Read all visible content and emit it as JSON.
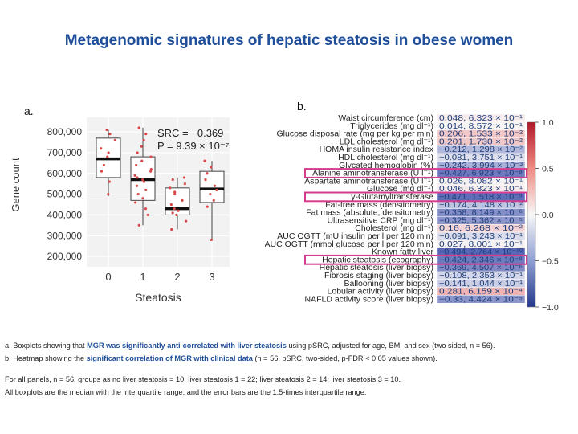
{
  "title": "Metagenomic signatures of hepatic steatosis in obese women",
  "panel_a_label": "a.",
  "panel_b_label": "b.",
  "chart_data": [
    {
      "type": "box",
      "xlabel": "Steatosis",
      "ylabel": "Gene count",
      "categories": [
        "0",
        "1",
        "2",
        "3"
      ],
      "ylim": [
        150000,
        870000
      ],
      "yticks": [
        200000,
        300000,
        400000,
        500000,
        600000,
        700000,
        800000
      ],
      "ytick_labels": [
        "200,000",
        "300,000",
        "400,000",
        "500,000",
        "600,000",
        "700,000",
        "800,000"
      ],
      "annotation_line1": "SRC = −0.369",
      "annotation_line2": "P = 9.39 × 10⁻⁷",
      "boxes": [
        {
          "category": "0",
          "q1": 580000,
          "median": 670000,
          "q3": 770000,
          "whisker_low": 490000,
          "whisker_high": 810000,
          "points": [
            500000,
            560000,
            610000,
            640000,
            680000,
            700000,
            720000,
            760000,
            790000,
            810000
          ]
        },
        {
          "category": "1",
          "q1": 470000,
          "median": 570000,
          "q3": 680000,
          "whisker_low": 350000,
          "whisker_high": 820000,
          "points": [
            350000,
            400000,
            430000,
            460000,
            480000,
            500000,
            520000,
            540000,
            560000,
            570000,
            580000,
            590000,
            610000,
            620000,
            640000,
            660000,
            680000,
            700000,
            730000,
            760000,
            790000,
            820000
          ]
        },
        {
          "category": "2",
          "q1": 400000,
          "median": 430000,
          "q3": 530000,
          "whisker_low": 330000,
          "whisker_high": 580000,
          "points": [
            330000,
            370000,
            400000,
            410000,
            420000,
            430000,
            450000,
            470000,
            500000,
            510000,
            530000,
            550000,
            570000,
            580000
          ]
        },
        {
          "category": "3",
          "q1": 460000,
          "median": 525000,
          "q3": 610000,
          "whisker_low": 280000,
          "whisker_high": 660000,
          "points": [
            280000,
            440000,
            470000,
            500000,
            520000,
            540000,
            570000,
            600000,
            630000,
            660000
          ]
        }
      ]
    },
    {
      "type": "heatmap",
      "colorbar_ticks": [
        "1.0",
        "0.5",
        "0.0",
        "−0.5",
        "−1.0"
      ],
      "colorbar_values": [
        1.0,
        0.5,
        0.0,
        -0.5,
        -1.0
      ],
      "rows": [
        {
          "label": "Waist circumference (cm)",
          "value_text": "0.048, 6.323 × 10⁻¹",
          "value": 0.048,
          "highlight": false
        },
        {
          "label": "Triglycerides (mg dl⁻¹)",
          "value_text": "0.014, 8.572 × 10⁻¹",
          "value": 0.014,
          "highlight": false
        },
        {
          "label": "Glucose disposal rate (mg per kg per min)",
          "value_text": "0.206, 1.533 × 10⁻²",
          "value": 0.206,
          "highlight": false
        },
        {
          "label": "LDL cholesterol (mg dl⁻¹)",
          "value_text": "0.201, 1.730 × 10⁻²",
          "value": 0.201,
          "highlight": false
        },
        {
          "label": "HOMA insulin resistance index",
          "value_text": "−0.212, 1.298 × 10⁻²",
          "value": -0.212,
          "highlight": false
        },
        {
          "label": "HDL cholesterol (mg dl⁻¹)",
          "value_text": "−0.081, 3.751 × 10⁻¹",
          "value": -0.081,
          "highlight": false
        },
        {
          "label": "Glycated hemoglobin (%)",
          "value_text": "−0.242, 3.994 × 10⁻³",
          "value": -0.242,
          "highlight": false
        },
        {
          "label": "Alanine aminotransferase (U l⁻¹)",
          "value_text": "−0.427, 6.923 × 10⁻⁸",
          "value": -0.427,
          "highlight": true
        },
        {
          "label": "Aspartate aminotransferase (U l⁻¹)",
          "value_text": "0.026, 8.082 × 10⁻¹",
          "value": 0.026,
          "highlight": false
        },
        {
          "label": "Glucose (mg dl⁻¹)",
          "value_text": "0.046, 6.323 × 10⁻¹",
          "value": 0.046,
          "highlight": false
        },
        {
          "label": "γ-Glutamyltransferase",
          "value_text": "−0.471, 1.518 × 10⁻⁹",
          "value": -0.471,
          "highlight": true
        },
        {
          "label": "Fat-free mass (densitometry)",
          "value_text": "−0.174, 4.148 × 10⁻²",
          "value": -0.174,
          "highlight": false
        },
        {
          "label": "Fat mass (absolute, densitometry)",
          "value_text": "−0.358, 8.149 × 10⁻⁶",
          "value": -0.358,
          "highlight": false
        },
        {
          "label": "Ultrasensitive CRP (mg dl⁻¹)",
          "value_text": "−0.325, 5.362 × 10⁻⁵",
          "value": -0.325,
          "highlight": false
        },
        {
          "label": "Cholesterol (mg dl⁻¹)",
          "value_text": "0.16, 6.268 × 10⁻²",
          "value": 0.16,
          "highlight": false
        },
        {
          "label": "AUC OGTT (mU insulin per l per 120 min)",
          "value_text": "−0.091, 3.243 × 10⁻¹",
          "value": -0.091,
          "highlight": false
        },
        {
          "label": "AUC OGTT (mmol glucose per l per 120 min)",
          "value_text": "0.027, 8.001 × 10⁻¹",
          "value": 0.027,
          "highlight": false
        },
        {
          "label": "Known fatty liver",
          "value_text": "−0.494, 2.764 × 10⁻¹⁰",
          "value": -0.494,
          "highlight": false
        },
        {
          "label": "Hepatic steatosis (ecography)",
          "value_text": "−0.424, 2.346 × 10⁻⁸",
          "value": -0.424,
          "highlight": true
        },
        {
          "label": "Hepatic steatosis (liver biopsy)",
          "value_text": "−0.369, 4.507 × 10⁻⁶",
          "value": -0.369,
          "highlight": false
        },
        {
          "label": "Fibrosis staging (liver biopsy)",
          "value_text": "−0.108, 2.353 × 10⁻¹",
          "value": -0.108,
          "highlight": false
        },
        {
          "label": "Ballooning (liver biopsy)",
          "value_text": "−0.141, 1.044 × 10⁻¹",
          "value": -0.141,
          "highlight": false
        },
        {
          "label": "Lobular activity (liver biopsy)",
          "value_text": "0.281, 6.159 × 10⁻⁴",
          "value": 0.281,
          "highlight": false
        },
        {
          "label": "NAFLD activity score (liver biopsy)",
          "value_text": "−0.33, 4.424 × 10⁻⁵",
          "value": -0.33,
          "highlight": false
        }
      ]
    }
  ],
  "captions": {
    "a_pre": "a. Boxplots showing that ",
    "a_hl": "MGR was significantly anti-correlated with liver steatosis",
    "a_post": " using pSRC, adjusted for age, BMI and sex (two sided, n = 56).",
    "b_pre": "b. Heatmap showing the ",
    "b_hl": "significant correlation of MGR with clinical data",
    "b_post": " (n = 56, pSRC, two-sided, p-FDR < 0.05 values shown).",
    "groups": "For all panels, n = 56, groups as no liver steatosis = 10; liver steatosis 1 = 22; liver steatosis 2 = 14; liver steatosis 3 = 10.",
    "boxplots": "All boxplots are the median with the interquartile range, and the error bars are the 1.5-times interquartile range."
  },
  "colors": {
    "title": "#1f4e9a",
    "points": "#d94848",
    "highlight_box": "#d63c8e",
    "neg": "#3b5aa8",
    "pos": "#c9302c"
  }
}
